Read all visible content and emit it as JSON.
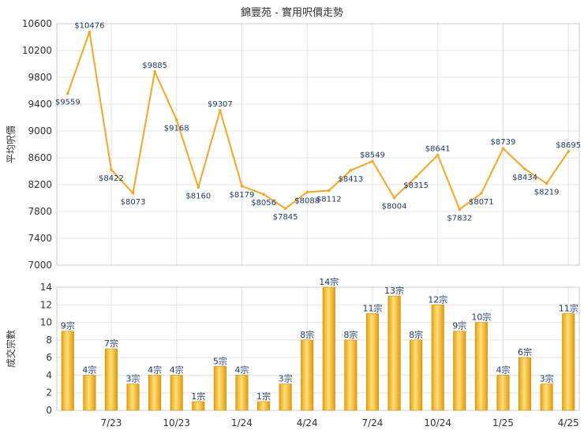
{
  "chart_data": [
    {
      "type": "line",
      "title": "錦豐苑 - 實用呎價走勢",
      "ylabel": "平均呎價",
      "ylim": [
        7000,
        10600
      ],
      "yticks": [
        7000,
        7400,
        7800,
        8200,
        8600,
        9000,
        9400,
        9800,
        10200,
        10600
      ],
      "x_ticks": [
        "7/23",
        "10/23",
        "1/24",
        "4/24",
        "7/24",
        "10/24",
        "1/25",
        "4/25"
      ],
      "values": [
        9559,
        10476,
        8422,
        8073,
        9885,
        9168,
        8160,
        9307,
        8179,
        8056,
        7845,
        8088,
        8112,
        8413,
        8549,
        8004,
        8315,
        8641,
        7832,
        8071,
        8739,
        8434,
        8219,
        8695
      ],
      "value_labels": [
        "$9559",
        "$10476",
        "$8422",
        "$8073",
        "$9885",
        "$9168",
        "$8160",
        "$9307",
        "$8179",
        "$8056",
        "$7845",
        "$8088",
        "$8112",
        "$8413",
        "$8549",
        "$8004",
        "$8315",
        "$8641",
        "$7832",
        "$8071",
        "$8739",
        "$8434",
        "$8219",
        "$8695"
      ],
      "color": "#f5a623",
      "grid": true
    },
    {
      "type": "bar",
      "ylabel": "成交宗數",
      "ylim": [
        0,
        14
      ],
      "yticks": [
        0,
        2,
        4,
        6,
        8,
        10,
        12,
        14
      ],
      "x_ticks": [
        "7/23",
        "10/23",
        "1/24",
        "4/24",
        "7/24",
        "10/24",
        "1/25",
        "4/25"
      ],
      "values": [
        9,
        4,
        7,
        3,
        4,
        4,
        1,
        5,
        4,
        1,
        3,
        8,
        14,
        8,
        11,
        13,
        8,
        12,
        9,
        10,
        4,
        6,
        3,
        11
      ],
      "value_labels": [
        "9宗",
        "4宗",
        "7宗",
        "3宗",
        "4宗",
        "4宗",
        "1宗",
        "5宗",
        "4宗",
        "1宗",
        "3宗",
        "8宗",
        "14宗",
        "8宗",
        "11宗",
        "13宗",
        "8宗",
        "12宗",
        "9宗",
        "10宗",
        "4宗",
        "6宗",
        "3宗",
        "11宗"
      ],
      "color": "#f0b020",
      "grid": true
    }
  ]
}
